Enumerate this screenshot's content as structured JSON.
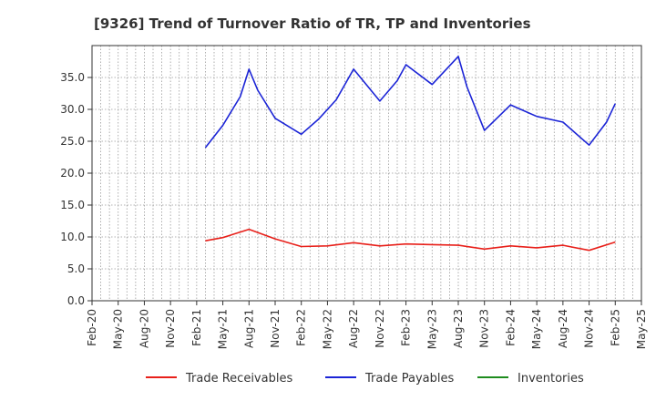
{
  "chart_data": {
    "type": "line",
    "title": "[9326]  Trend of Turnover Ratio of TR, TP and Inventories",
    "xlabel": "",
    "ylabel": "",
    "ylim": [
      0,
      40
    ],
    "yticks": [
      "0.0",
      "5.0",
      "10.0",
      "15.0",
      "20.0",
      "25.0",
      "30.0",
      "35.0"
    ],
    "xticks": [
      "Feb-20",
      "May-20",
      "Aug-20",
      "Nov-20",
      "Feb-21",
      "May-21",
      "Aug-21",
      "Nov-21",
      "Feb-22",
      "May-22",
      "Aug-22",
      "Nov-22",
      "Feb-23",
      "May-23",
      "Aug-23",
      "Nov-23",
      "Feb-24",
      "May-24",
      "Aug-24",
      "Nov-24",
      "Feb-25",
      "May-25"
    ],
    "grid": true,
    "legend_position": "bottom",
    "series": [
      {
        "name": "Trade Receivables",
        "color": "#e8201a",
        "points": [
          [
            "Mar-21",
            9.4
          ],
          [
            "May-21",
            9.9
          ],
          [
            "Aug-21",
            11.2
          ],
          [
            "Nov-21",
            9.7
          ],
          [
            "Feb-22",
            8.5
          ],
          [
            "May-22",
            8.6
          ],
          [
            "Aug-22",
            9.1
          ],
          [
            "Nov-22",
            8.6
          ],
          [
            "Feb-23",
            8.9
          ],
          [
            "May-23",
            8.8
          ],
          [
            "Aug-23",
            8.7
          ],
          [
            "Nov-23",
            8.1
          ],
          [
            "Feb-24",
            8.6
          ],
          [
            "May-24",
            8.3
          ],
          [
            "Aug-24",
            8.7
          ],
          [
            "Nov-24",
            7.9
          ],
          [
            "Feb-25",
            9.2
          ]
        ]
      },
      {
        "name": "Trade Payables",
        "color": "#1b24d6",
        "points": [
          [
            "Mar-21",
            24.0
          ],
          [
            "May-21",
            27.5
          ],
          [
            "Jul-21",
            32.0
          ],
          [
            "Aug-21",
            36.3
          ],
          [
            "Sep-21",
            33.0
          ],
          [
            "Nov-21",
            28.6
          ],
          [
            "Feb-22",
            26.1
          ],
          [
            "Apr-22",
            28.5
          ],
          [
            "Jun-22",
            31.5
          ],
          [
            "Aug-22",
            36.3
          ],
          [
            "Nov-22",
            31.3
          ],
          [
            "Jan-23",
            34.5
          ],
          [
            "Feb-23",
            37.0
          ],
          [
            "May-23",
            33.9
          ],
          [
            "Aug-23",
            38.3
          ],
          [
            "Sep-23",
            33.5
          ],
          [
            "Nov-23",
            26.7
          ],
          [
            "Feb-24",
            30.7
          ],
          [
            "May-24",
            28.9
          ],
          [
            "Aug-24",
            28.0
          ],
          [
            "Nov-24",
            24.4
          ],
          [
            "Jan-25",
            28.0
          ],
          [
            "Feb-25",
            30.9
          ]
        ]
      },
      {
        "name": "Inventories",
        "color": "#1e8c1e",
        "points": []
      }
    ]
  }
}
